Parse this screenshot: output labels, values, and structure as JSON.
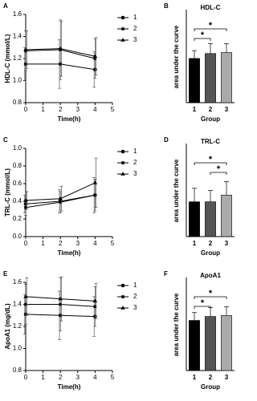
{
  "chart_data": [
    {
      "type": "line",
      "panel": "A",
      "ylabel": "HDL-C (mmol/L)",
      "xlabel": "Time(h)",
      "x": [
        0,
        2,
        4
      ],
      "xlim": [
        0,
        5
      ],
      "xticks": [
        0,
        1,
        2,
        3,
        4,
        5
      ],
      "ylim": [
        0.8,
        1.6
      ],
      "yticks": [
        0.8,
        {
          "value": 1.0,
          "label": "1.0"
        },
        1.2,
        1.4,
        1.6
      ],
      "series": [
        {
          "name": "1",
          "marker": "circle",
          "color": "#000000",
          "values": [
            1.15,
            1.15,
            1.1
          ],
          "errors": [
            0.15,
            0.22,
            0.16
          ]
        },
        {
          "name": "2",
          "marker": "square",
          "color": "#000000",
          "values": [
            1.27,
            1.28,
            1.2
          ],
          "errors": [
            0.18,
            0.27,
            0.18
          ]
        },
        {
          "name": "3",
          "marker": "triangle",
          "color": "#000000",
          "values": [
            1.28,
            1.29,
            1.22
          ],
          "errors": [
            0.17,
            0.25,
            0.17
          ]
        }
      ]
    },
    {
      "type": "bar",
      "panel": "B",
      "title": "HDL-C",
      "ylabel": "area under the curve",
      "xlabel": "Group",
      "categories": [
        "1",
        "2",
        "3"
      ],
      "values": [
        4.5,
        5.0,
        5.1
      ],
      "errors": [
        0.8,
        1.0,
        0.9
      ],
      "colors": [
        "#000000",
        "#555555",
        "#aaaaaa"
      ],
      "ylim": [
        0,
        8
      ],
      "significance": [
        {
          "from": 0,
          "to": 1,
          "label": "*"
        },
        {
          "from": 0,
          "to": 2,
          "label": "*"
        }
      ]
    },
    {
      "type": "line",
      "panel": "C",
      "ylabel": "TRL-C (mmol/L)",
      "xlabel": "Time(h)",
      "x": [
        0,
        2,
        4
      ],
      "xlim": [
        0,
        5
      ],
      "xticks": [
        0,
        1,
        2,
        3,
        4,
        5
      ],
      "ylim": [
        0,
        1.0
      ],
      "yticks": [
        {
          "value": 0,
          "label": "0.0"
        },
        0.2,
        0.4,
        0.6,
        0.8,
        {
          "value": 1.0,
          "label": "1.0"
        }
      ],
      "series": [
        {
          "name": "1",
          "marker": "circle",
          "color": "#000000",
          "values": [
            0.37,
            0.4,
            0.47
          ],
          "errors": [
            0.1,
            0.13,
            0.2
          ]
        },
        {
          "name": "2",
          "marker": "square",
          "color": "#000000",
          "values": [
            0.33,
            0.39,
            0.47
          ],
          "errors": [
            0.09,
            0.12,
            0.18
          ]
        },
        {
          "name": "3",
          "marker": "triangle",
          "color": "#000000",
          "values": [
            0.41,
            0.43,
            0.61
          ],
          "errors": [
            0.1,
            0.14,
            0.28
          ]
        }
      ]
    },
    {
      "type": "bar",
      "panel": "D",
      "title": "TRL-C",
      "ylabel": "area under the curve",
      "xlabel": "Group",
      "categories": [
        "1",
        "2",
        "3"
      ],
      "values": [
        1.55,
        1.55,
        1.85
      ],
      "errors": [
        0.6,
        0.5,
        0.6
      ],
      "colors": [
        "#000000",
        "#555555",
        "#aaaaaa"
      ],
      "ylim": [
        0,
        3.5
      ],
      "significance": [
        {
          "from": 1,
          "to": 2,
          "label": "*"
        },
        {
          "from": 0,
          "to": 2,
          "label": "*"
        }
      ]
    },
    {
      "type": "line",
      "panel": "E",
      "ylabel": "ApoA1 (mg/dL)",
      "xlabel": "Time(h)",
      "x": [
        0,
        2,
        4
      ],
      "xlim": [
        0,
        5
      ],
      "xticks": [
        0,
        1,
        2,
        3,
        4,
        5
      ],
      "ylim": [
        0.8,
        1.6
      ],
      "yticks": [
        0.8,
        {
          "value": 1.0,
          "label": "1.0"
        },
        1.2,
        1.4,
        1.6
      ],
      "series": [
        {
          "name": "1",
          "marker": "circle",
          "color": "#000000",
          "values": [
            1.31,
            1.3,
            1.29
          ],
          "errors": [
            0.18,
            0.22,
            0.18
          ]
        },
        {
          "name": "2",
          "marker": "square",
          "color": "#000000",
          "values": [
            1.4,
            1.4,
            1.38
          ],
          "errors": [
            0.18,
            0.24,
            0.18
          ]
        },
        {
          "name": "3",
          "marker": "triangle",
          "color": "#000000",
          "values": [
            1.47,
            1.45,
            1.43
          ],
          "errors": [
            0.17,
            0.2,
            0.16
          ]
        }
      ]
    },
    {
      "type": "bar",
      "panel": "F",
      "title": "ApoA1",
      "ylabel": "area under the curve",
      "xlabel": "Group",
      "categories": [
        "1",
        "2",
        "3"
      ],
      "values": [
        5.1,
        5.5,
        5.6
      ],
      "errors": [
        0.8,
        0.9,
        0.9
      ],
      "colors": [
        "#000000",
        "#555555",
        "#aaaaaa"
      ],
      "ylim": [
        0,
        8
      ],
      "significance": [
        {
          "from": 0,
          "to": 1,
          "label": "*"
        },
        {
          "from": 0,
          "to": 2,
          "label": "*"
        }
      ]
    }
  ]
}
